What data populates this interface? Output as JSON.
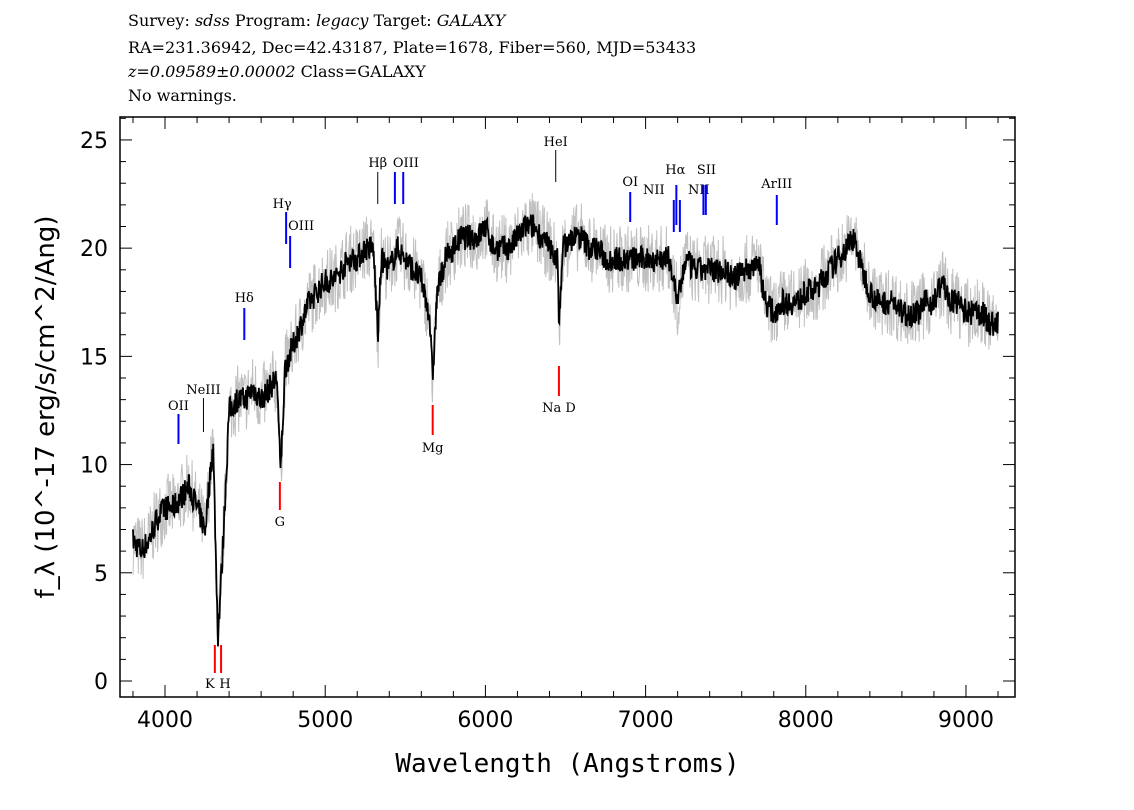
{
  "header": {
    "line1": {
      "survey_label": "Survey:",
      "survey": "sdss",
      "program_label": "Program:",
      "program": "legacy",
      "target_label": "Target:",
      "target": "GALAXY"
    },
    "line2": "RA=231.36942, Dec=42.43187, Plate=1678, Fiber=560, MJD=53433",
    "line3": {
      "redshift": "z=0.09589±0.00002",
      "class": "Class=GALAXY"
    },
    "line4": "No warnings."
  },
  "chart_data": {
    "type": "line",
    "xlabel": "Wavelength (Angstroms)",
    "ylabel": "f_λ (10^-17 erg/s/cm^2/Ang)",
    "xlim": [
      3719,
      9306
    ],
    "ylim": [
      -0.74,
      26.06
    ],
    "xticks": [
      4000,
      5000,
      6000,
      7000,
      8000,
      9000
    ],
    "yticks": [
      0,
      5,
      10,
      15,
      20,
      25
    ],
    "colors": {
      "flux": "#000000",
      "error": "#c0c0c0",
      "emission": "#0000ff",
      "absorption": "#ff0000",
      "other": "#000000"
    },
    "x": [
      3800,
      3850,
      3900,
      3950,
      4000,
      4050,
      4100,
      4150,
      4200,
      4250,
      4300,
      4330,
      4360,
      4400,
      4450,
      4500,
      4550,
      4600,
      4650,
      4700,
      4720,
      4750,
      4800,
      4850,
      4900,
      4950,
      5000,
      5050,
      5100,
      5150,
      5200,
      5250,
      5300,
      5330,
      5350,
      5400,
      5450,
      5500,
      5550,
      5600,
      5650,
      5670,
      5700,
      5750,
      5800,
      5850,
      5900,
      5950,
      6000,
      6050,
      6100,
      6150,
      6200,
      6250,
      6300,
      6350,
      6400,
      6450,
      6460,
      6480,
      6550,
      6600,
      6650,
      6700,
      6750,
      6800,
      6850,
      6900,
      6950,
      7000,
      7050,
      7100,
      7150,
      7200,
      7250,
      7300,
      7350,
      7400,
      7450,
      7500,
      7550,
      7600,
      7650,
      7700,
      7750,
      7800,
      7850,
      7900,
      7950,
      8000,
      8050,
      8100,
      8150,
      8200,
      8250,
      8300,
      8350,
      8400,
      8450,
      8500,
      8550,
      8600,
      8650,
      8700,
      8750,
      8800,
      8850,
      8900,
      8950,
      9000,
      9050,
      9100,
      9150,
      9200
    ],
    "flux": [
      6.5,
      6,
      6.5,
      7.5,
      8,
      8,
      8.5,
      9,
      8,
      7,
      11,
      2,
      6,
      12.5,
      13,
      13,
      13.5,
      13,
      13.5,
      14,
      9.5,
      14.5,
      15.5,
      16.5,
      17.5,
      18,
      18.5,
      18.5,
      19,
      19.5,
      19.5,
      20,
      20,
      16,
      19.5,
      19,
      20,
      19.5,
      19,
      18.5,
      17,
      14,
      18,
      19.5,
      20,
      20.5,
      20.5,
      20.5,
      21,
      20,
      20,
      20,
      20.5,
      21,
      21,
      20.5,
      20,
      19.5,
      16,
      20,
      20.5,
      20.5,
      20,
      20,
      19.5,
      19.5,
      19.5,
      19.5,
      19.5,
      19.5,
      19.5,
      19.5,
      19.5,
      17.5,
      19.5,
      19,
      19,
      19,
      19,
      19,
      18.5,
      19,
      19,
      19.5,
      17.5,
      17,
      17.5,
      17.5,
      17.5,
      18,
      18,
      18.5,
      19,
      19.5,
      20,
      20.5,
      19,
      18,
      17.5,
      17.5,
      17.5,
      17,
      17,
      17,
      17.5,
      17.5,
      18.5,
      17.5,
      17.5,
      17,
      17,
      17,
      16.5,
      16.5
    ],
    "lines": [
      {
        "label": "OII",
        "wavelength": 4084,
        "type": "emission"
      },
      {
        "label": "NeIII",
        "wavelength": 4240,
        "type": "other"
      },
      {
        "label": "Hδ",
        "wavelength": 4495,
        "type": "emission"
      },
      {
        "label": "Hγ",
        "wavelength": 4756,
        "type": "emission"
      },
      {
        "label": "OIII",
        "wavelength": 4781,
        "type": "emission"
      },
      {
        "label": "Hβ",
        "wavelength": 5328,
        "type": "other"
      },
      {
        "label": "OIII",
        "wavelength": 5435,
        "type": "emission"
      },
      {
        "label": "",
        "wavelength": 5487,
        "type": "emission"
      },
      {
        "label": "HeI",
        "wavelength": 6439,
        "type": "other"
      },
      {
        "label": "OI",
        "wavelength": 6904,
        "type": "emission"
      },
      {
        "label": "NII",
        "wavelength": 7176,
        "type": "emission"
      },
      {
        "label": "Hα",
        "wavelength": 7192,
        "type": "emission"
      },
      {
        "label": "NII",
        "wavelength": 7214,
        "type": "emission"
      },
      {
        "label": "SII",
        "wavelength": 7361,
        "type": "emission"
      },
      {
        "label": "",
        "wavelength": 7376,
        "type": "emission"
      },
      {
        "label": "ArIII",
        "wavelength": 7819,
        "type": "emission"
      },
      {
        "label": "K",
        "wavelength": 4311,
        "type": "absorption"
      },
      {
        "label": "H",
        "wavelength": 4350,
        "type": "absorption"
      },
      {
        "label": "G",
        "wavelength": 4717,
        "type": "absorption"
      },
      {
        "label": "Mg",
        "wavelength": 5671,
        "type": "absorption"
      },
      {
        "label": "Na D",
        "wavelength": 6459,
        "type": "absorption"
      }
    ]
  }
}
